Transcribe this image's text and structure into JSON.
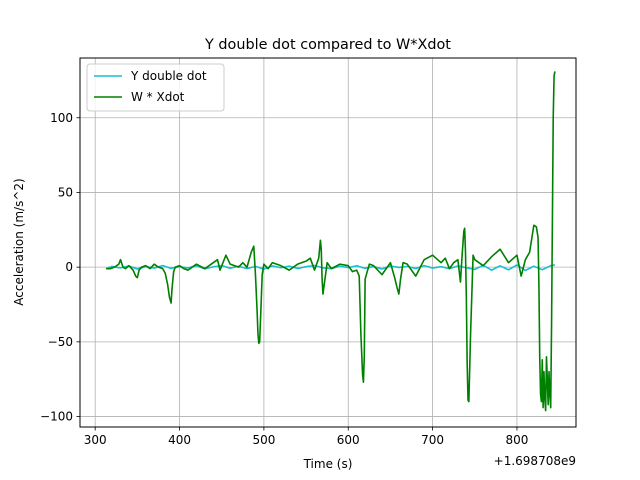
{
  "chart_data": {
    "type": "line",
    "title": "Y double dot compared to W*Xdot",
    "xlabel": "Time (s)",
    "ylabel": "Acceleration (m/s^2)",
    "x_offset_label": "+1.698708e9",
    "xlim": [
      282,
      870
    ],
    "ylim": [
      -107,
      140
    ],
    "x_ticks": [
      300,
      400,
      500,
      600,
      700,
      800
    ],
    "x_tick_labels": [
      "300",
      "400",
      "500",
      "600",
      "700",
      "800"
    ],
    "y_ticks": [
      -100,
      -50,
      0,
      50,
      100
    ],
    "y_tick_labels": [
      "−100",
      "−50",
      "0",
      "50",
      "100"
    ],
    "grid": true,
    "legend_position": "upper left",
    "series": [
      {
        "name": "Y double dot",
        "color": "#17becf",
        "x": [
          313,
          320,
          330,
          340,
          350,
          360,
          370,
          380,
          390,
          400,
          410,
          420,
          430,
          440,
          450,
          460,
          470,
          480,
          490,
          500,
          510,
          520,
          530,
          540,
          550,
          560,
          570,
          580,
          590,
          600,
          610,
          620,
          630,
          640,
          650,
          660,
          670,
          680,
          690,
          700,
          710,
          720,
          730,
          740,
          750,
          760,
          770,
          780,
          790,
          800,
          810,
          820,
          830,
          840,
          845
        ],
        "y": [
          -1,
          0.5,
          -0.5,
          0.8,
          -1.2,
          0.4,
          -0.6,
          1.0,
          -0.8,
          0.3,
          -0.5,
          0.9,
          -1.1,
          0.2,
          1.0,
          -0.7,
          0.6,
          -1.0,
          0.5,
          -1.3,
          0.8,
          -0.4,
          0.7,
          -0.9,
          0.3,
          1.1,
          -0.5,
          -1.0,
          0.6,
          -0.3,
          0.9,
          -0.8,
          0.4,
          -1.2,
          0.7,
          -0.2,
          0.5,
          -0.9,
          1.0,
          -0.6,
          0.3,
          -1.0,
          0.8,
          -0.4,
          -1.5,
          1.2,
          -2.0,
          0.9,
          -1.8,
          1.5,
          -2.2,
          0.6,
          -1.7,
          1.0,
          1.5
        ]
      },
      {
        "name": "W * Xdot",
        "color": "#008000",
        "x": [
          313,
          318,
          323,
          328,
          330,
          333,
          336,
          340,
          345,
          348,
          350,
          352,
          355,
          360,
          365,
          370,
          375,
          380,
          383,
          386,
          388,
          390,
          391,
          393,
          395,
          400,
          405,
          410,
          420,
          430,
          440,
          445,
          448,
          455,
          460,
          470,
          475,
          480,
          485,
          488,
          490,
          492,
          493,
          494,
          495,
          496,
          498,
          500,
          505,
          510,
          520,
          530,
          540,
          550,
          555,
          560,
          565,
          567,
          568,
          569,
          570,
          575,
          580,
          590,
          600,
          605,
          610,
          613,
          615,
          617,
          618,
          619,
          620,
          625,
          630,
          640,
          650,
          655,
          658,
          660,
          662,
          665,
          670,
          680,
          690,
          700,
          710,
          715,
          720,
          725,
          730,
          733,
          735,
          737,
          738,
          739,
          740,
          741,
          742,
          743,
          745,
          748,
          750,
          760,
          770,
          780,
          790,
          800,
          805,
          810,
          815,
          820,
          823,
          825,
          826,
          827,
          828,
          829,
          830,
          831,
          832,
          833,
          834,
          835,
          836,
          837,
          838,
          839,
          840,
          841,
          842,
          843,
          844,
          845
        ],
        "y": [
          -1,
          -1,
          0,
          2,
          5,
          0,
          -1,
          1,
          -2,
          -6,
          -7,
          -2,
          0,
          1,
          -1,
          2,
          0,
          -1,
          -4,
          -12,
          -20,
          -24,
          -15,
          -3,
          0,
          1,
          -1,
          -2,
          2,
          -1,
          3,
          5,
          -2,
          8,
          2,
          0,
          3,
          0,
          10,
          14,
          -5,
          -30,
          -45,
          -51,
          -50,
          -35,
          -5,
          2,
          -1,
          3,
          1,
          -2,
          2,
          4,
          6,
          -2,
          6,
          18,
          12,
          -8,
          -18,
          3,
          -1,
          2,
          1,
          -3,
          -2,
          -6,
          -45,
          -72,
          -77,
          -60,
          -8,
          2,
          1,
          -5,
          3,
          -7,
          -14,
          -18,
          -8,
          3,
          2,
          -6,
          5,
          8,
          3,
          6,
          -1,
          3,
          5,
          -10,
          8,
          24,
          26,
          10,
          -20,
          -65,
          -89,
          -90,
          -45,
          8,
          5,
          1,
          7,
          12,
          3,
          8,
          -6,
          5,
          10,
          28,
          27,
          20,
          -10,
          -60,
          -85,
          -90,
          -62,
          -94,
          -70,
          -88,
          -96,
          -60,
          -75,
          -92,
          -70,
          -85,
          -94,
          -40,
          30,
          100,
          128,
          131
        ]
      }
    ]
  }
}
